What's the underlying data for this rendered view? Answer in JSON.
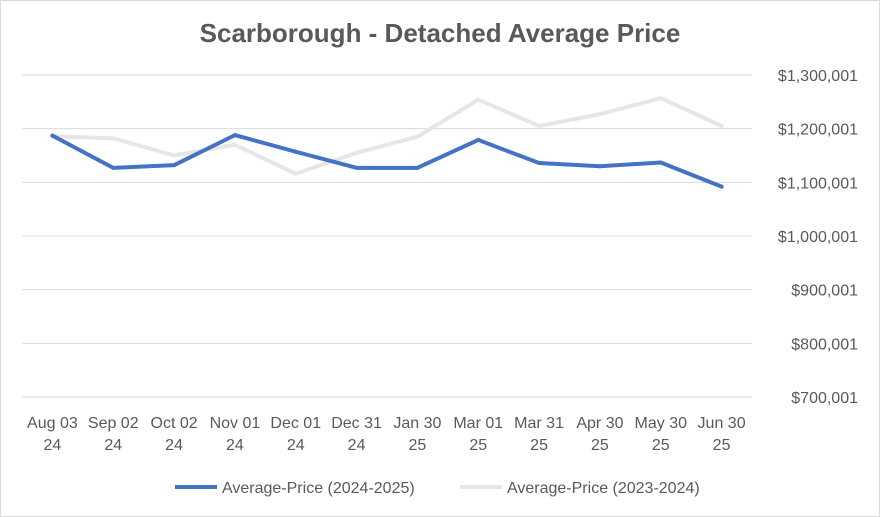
{
  "chart_data": {
    "type": "line",
    "title": "Scarborough - Detached Average Price",
    "xlabel": "",
    "ylabel": "",
    "categories": [
      [
        "Aug 03",
        "24"
      ],
      [
        "Sep 02",
        "24"
      ],
      [
        "Oct 02",
        "24"
      ],
      [
        "Nov 01",
        "24"
      ],
      [
        "Dec 01",
        "24"
      ],
      [
        "Dec 31",
        "24"
      ],
      [
        "Jan 30",
        "25"
      ],
      [
        "Mar 01",
        "25"
      ],
      [
        "Mar 31",
        "25"
      ],
      [
        "Apr 30",
        "25"
      ],
      [
        "May 30",
        "25"
      ],
      [
        "Jun 30",
        "25"
      ]
    ],
    "y_ticks": [
      700001,
      800001,
      900001,
      1000001,
      1100001,
      1200001,
      1300001
    ],
    "y_tick_labels": [
      "$700,001",
      "$800,001",
      "$900,001",
      "$1,000,001",
      "$1,100,001",
      "$1,200,001",
      "$1,300,001"
    ],
    "ylim": [
      700001,
      1300001
    ],
    "grid": true,
    "y_axis_side": "right",
    "legend_position": "bottom",
    "series": [
      {
        "name": "Average-Price (2024-2025)",
        "color": "#4472c4",
        "values": [
          1187000,
          1127000,
          1132000,
          1188000,
          1157000,
          1127000,
          1127000,
          1179000,
          1136000,
          1130000,
          1137000,
          1092000
        ]
      },
      {
        "name": "Average-Price (2023-2024)",
        "color": "#e7e6e6",
        "values": [
          1186000,
          1182000,
          1150000,
          1170000,
          1116000,
          1155000,
          1185000,
          1254000,
          1205000,
          1227000,
          1257000,
          1205000
        ]
      }
    ]
  }
}
